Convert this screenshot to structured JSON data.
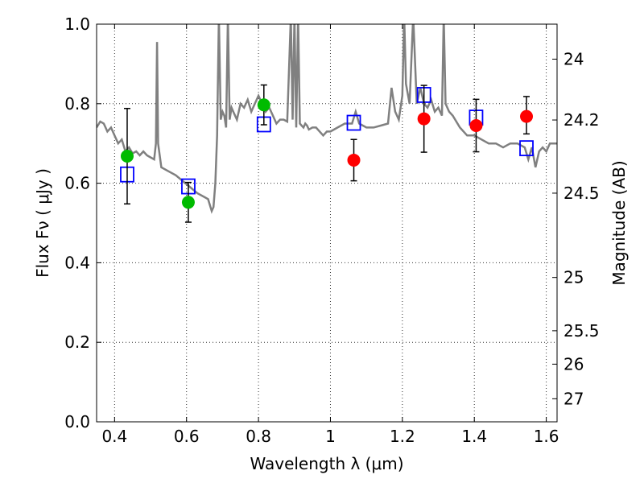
{
  "chart_data": {
    "type": "scatter",
    "xlabel": "Wavelength  λ (μm)",
    "ylabel": "Flux  Fν  ( μJy )",
    "ylabel_right": "Magnitude (AB)",
    "xlim": [
      0.35,
      1.63
    ],
    "ylim": [
      0.0,
      1.0
    ],
    "grid": true,
    "x_ticks": [
      {
        "value": 0.4,
        "label": "0.4"
      },
      {
        "value": 0.6,
        "label": "0.6"
      },
      {
        "value": 0.8,
        "label": "0.8"
      },
      {
        "value": 1.0,
        "label": "1"
      },
      {
        "value": 1.2,
        "label": "1.2"
      },
      {
        "value": 1.4,
        "label": "1.4"
      },
      {
        "value": 1.6,
        "label": "1.6"
      }
    ],
    "y_ticks": [
      {
        "value": 0.0,
        "label": "0.0"
      },
      {
        "value": 0.2,
        "label": "0.2"
      },
      {
        "value": 0.4,
        "label": "0.4"
      },
      {
        "value": 0.6,
        "label": "0.6"
      },
      {
        "value": 0.8,
        "label": "0.8"
      },
      {
        "value": 1.0,
        "label": "1.0"
      }
    ],
    "right_ticks": [
      {
        "label": "24",
        "flux": 0.912
      },
      {
        "label": "24.2",
        "flux": 0.759
      },
      {
        "label": "24.5",
        "flux": 0.575
      },
      {
        "label": "25",
        "flux": 0.363
      },
      {
        "label": "25.5",
        "flux": 0.229
      },
      {
        "label": "26",
        "flux": 0.145
      },
      {
        "label": "27",
        "flux": 0.058
      }
    ],
    "series": [
      {
        "kind": "model_spectrum",
        "color": "#808080",
        "x": [
          0.35,
          0.36,
          0.37,
          0.38,
          0.39,
          0.4,
          0.41,
          0.42,
          0.43,
          0.44,
          0.45,
          0.46,
          0.47,
          0.48,
          0.49,
          0.5,
          0.51,
          0.515,
          0.518,
          0.521,
          0.53,
          0.55,
          0.57,
          0.59,
          0.61,
          0.63,
          0.65,
          0.66,
          0.67,
          0.675,
          0.68,
          0.685,
          0.69,
          0.695,
          0.7,
          0.705,
          0.71,
          0.715,
          0.72,
          0.725,
          0.73,
          0.74,
          0.75,
          0.76,
          0.77,
          0.78,
          0.79,
          0.8,
          0.81,
          0.82,
          0.83,
          0.84,
          0.85,
          0.86,
          0.87,
          0.88,
          0.89,
          0.895,
          0.9,
          0.905,
          0.91,
          0.915,
          0.92,
          0.925,
          0.93,
          0.935,
          0.94,
          0.95,
          0.96,
          0.97,
          0.98,
          0.99,
          1.0,
          1.02,
          1.04,
          1.06,
          1.07,
          1.08,
          1.1,
          1.12,
          1.14,
          1.16,
          1.17,
          1.18,
          1.19,
          1.2,
          1.205,
          1.21,
          1.22,
          1.23,
          1.24,
          1.25,
          1.26,
          1.27,
          1.28,
          1.29,
          1.3,
          1.31,
          1.315,
          1.32,
          1.33,
          1.34,
          1.36,
          1.38,
          1.4,
          1.42,
          1.44,
          1.46,
          1.48,
          1.5,
          1.52,
          1.54,
          1.55,
          1.56,
          1.57,
          1.58,
          1.59,
          1.6,
          1.61,
          1.62,
          1.63
        ],
        "y": [
          0.74,
          0.755,
          0.75,
          0.73,
          0.74,
          0.72,
          0.7,
          0.71,
          0.68,
          0.69,
          0.675,
          0.68,
          0.67,
          0.68,
          0.67,
          0.665,
          0.66,
          0.7,
          0.955,
          0.7,
          0.64,
          0.63,
          0.62,
          0.605,
          0.59,
          0.575,
          0.565,
          0.56,
          0.53,
          0.54,
          0.6,
          0.72,
          1.02,
          0.76,
          0.78,
          0.77,
          0.74,
          1.02,
          0.76,
          0.79,
          0.78,
          0.76,
          0.8,
          0.79,
          0.81,
          0.78,
          0.8,
          0.82,
          0.8,
          0.78,
          0.79,
          0.77,
          0.75,
          0.76,
          0.76,
          0.755,
          1.02,
          0.76,
          1.02,
          0.74,
          1.02,
          0.75,
          0.745,
          0.74,
          0.75,
          0.745,
          0.735,
          0.74,
          0.74,
          0.73,
          0.72,
          0.73,
          0.73,
          0.74,
          0.75,
          0.75,
          0.78,
          0.75,
          0.74,
          0.74,
          0.745,
          0.75,
          0.84,
          0.78,
          0.76,
          0.82,
          1.02,
          0.85,
          0.8,
          1.02,
          0.8,
          0.84,
          0.8,
          0.79,
          0.81,
          0.78,
          0.79,
          0.77,
          1.02,
          0.8,
          0.78,
          0.77,
          0.74,
          0.72,
          0.72,
          0.71,
          0.7,
          0.7,
          0.69,
          0.7,
          0.7,
          0.69,
          0.66,
          0.69,
          0.64,
          0.68,
          0.69,
          0.68,
          0.7,
          0.7,
          0.7
        ]
      },
      {
        "kind": "model_photometry",
        "marker": "open-square",
        "color": "#0000ff",
        "x": [
          0.435,
          0.605,
          0.815,
          1.065,
          1.26,
          1.405,
          1.545
        ],
        "y": [
          0.622,
          0.592,
          0.748,
          0.752,
          0.822,
          0.765,
          0.688
        ]
      },
      {
        "kind": "observed",
        "marker": "circle",
        "color": "#00bb00",
        "x": [
          0.435,
          0.605,
          0.815
        ],
        "y": [
          0.668,
          0.552,
          0.797
        ],
        "yerr_low": [
          0.12,
          0.05,
          0.05
        ],
        "yerr_high": [
          0.12,
          0.05,
          0.05
        ]
      },
      {
        "kind": "observed",
        "marker": "circle",
        "color": "#ff0000",
        "x": [
          1.065,
          1.26,
          1.405,
          1.545
        ],
        "y": [
          0.658,
          0.762,
          0.745,
          0.768
        ],
        "yerr_low": [
          0.052,
          0.084,
          0.066,
          0.044
        ],
        "yerr_high": [
          0.052,
          0.084,
          0.066,
          0.05
        ]
      }
    ]
  }
}
